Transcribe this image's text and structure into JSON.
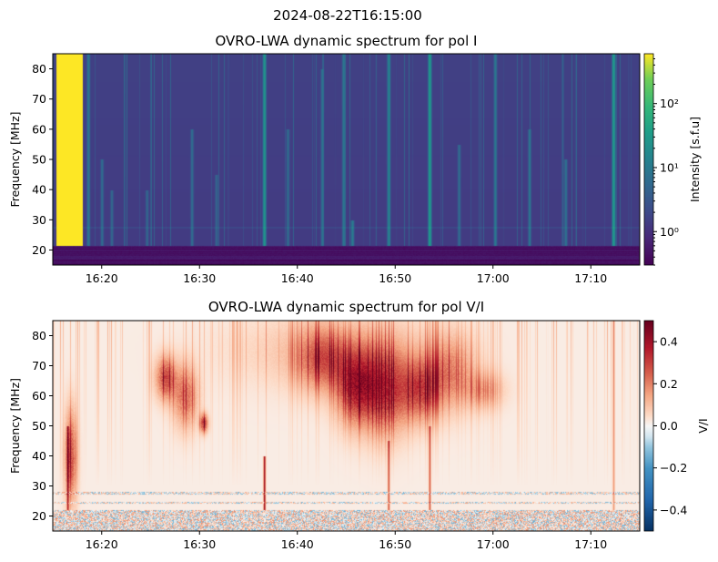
{
  "figure": {
    "suptitle": "2024-08-22T16:15:00"
  },
  "chart_data": [
    {
      "type": "heatmap",
      "title": "OVRO-LWA dynamic spectrum for pol I",
      "xlabel": "",
      "ylabel": "Frequency [MHz]",
      "xlim": [
        "16:15",
        "17:15"
      ],
      "ylim": [
        15,
        85
      ],
      "xticks": [
        {
          "v": 5,
          "label": "16:20"
        },
        {
          "v": 15,
          "label": "16:30"
        },
        {
          "v": 25,
          "label": "16:40"
        },
        {
          "v": 35,
          "label": "16:50"
        },
        {
          "v": 45,
          "label": "17:00"
        },
        {
          "v": 55,
          "label": "17:10"
        }
      ],
      "yticks": [
        20,
        30,
        40,
        50,
        60,
        70,
        80
      ],
      "colorbar": {
        "label": "Intensity [s.f.u]",
        "scale": "log",
        "range": [
          0.3,
          600
        ],
        "colormap": "viridis",
        "ticks": [
          {
            "v": 1,
            "label": "10⁰"
          },
          {
            "v": 10,
            "label": "10¹"
          },
          {
            "v": 100,
            "label": "10²"
          }
        ]
      },
      "background_level": 1.5,
      "low_freq_cutoff_mhz": 21.5,
      "bright_block": {
        "t_start_min": 0.3,
        "t_end_min": 3.0,
        "level": 600
      },
      "bursts": [
        {
          "t": 3.6,
          "fmin": 21,
          "fmax": 85,
          "level": 8
        },
        {
          "t": 5.0,
          "fmin": 21,
          "fmax": 50,
          "level": 5
        },
        {
          "t": 6.0,
          "fmin": 21,
          "fmax": 40,
          "level": 4
        },
        {
          "t": 9.6,
          "fmin": 21,
          "fmax": 40,
          "level": 4
        },
        {
          "t": 14.2,
          "fmin": 21,
          "fmax": 60,
          "level": 5
        },
        {
          "t": 16.7,
          "fmin": 21,
          "fmax": 45,
          "level": 4
        },
        {
          "t": 21.6,
          "fmin": 21,
          "fmax": 85,
          "level": 25
        },
        {
          "t": 24.0,
          "fmin": 21,
          "fmax": 60,
          "level": 5
        },
        {
          "t": 27.5,
          "fmin": 21,
          "fmax": 80,
          "level": 5
        },
        {
          "t": 29.7,
          "fmin": 21,
          "fmax": 85,
          "level": 8
        },
        {
          "t": 30.6,
          "fmin": 21,
          "fmax": 30,
          "level": 10
        },
        {
          "t": 34.3,
          "fmin": 21,
          "fmax": 85,
          "level": 12
        },
        {
          "t": 38.5,
          "fmin": 21,
          "fmax": 85,
          "level": 30
        },
        {
          "t": 41.5,
          "fmin": 21,
          "fmax": 55,
          "level": 5
        },
        {
          "t": 45.2,
          "fmin": 21,
          "fmax": 85,
          "level": 8
        },
        {
          "t": 48.7,
          "fmin": 21,
          "fmax": 60,
          "level": 6
        },
        {
          "t": 52.4,
          "fmin": 21,
          "fmax": 50,
          "level": 6
        },
        {
          "t": 57.3,
          "fmin": 21,
          "fmax": 85,
          "level": 30
        }
      ]
    },
    {
      "type": "heatmap",
      "title": "OVRO-LWA dynamic spectrum for pol V/I",
      "xlabel": "",
      "ylabel": "Frequency [MHz]",
      "xlim": [
        "16:15",
        "17:15"
      ],
      "ylim": [
        15,
        85
      ],
      "xticks": [
        {
          "v": 5,
          "label": "16:20"
        },
        {
          "v": 15,
          "label": "16:30"
        },
        {
          "v": 25,
          "label": "16:40"
        },
        {
          "v": 35,
          "label": "16:50"
        },
        {
          "v": 45,
          "label": "17:00"
        },
        {
          "v": 55,
          "label": "17:10"
        }
      ],
      "yticks": [
        20,
        30,
        40,
        50,
        60,
        70,
        80
      ],
      "colorbar": {
        "label": "V/I",
        "scale": "linear",
        "range": [
          -0.5,
          0.5
        ],
        "colormap": "RdBu_r",
        "ticks": [
          {
            "v": 0.4,
            "label": "0.4"
          },
          {
            "v": 0.2,
            "label": "0.2"
          },
          {
            "v": 0.0,
            "label": "0.0"
          },
          {
            "v": -0.2,
            "label": "−0.2"
          },
          {
            "v": -0.4,
            "label": "−0.4"
          }
        ]
      },
      "regions": [
        {
          "t": 1.8,
          "f": 40,
          "dt": 0.6,
          "df": 15,
          "value": 0.35
        },
        {
          "t": 11.5,
          "f": 66,
          "dt": 1.0,
          "df": 7,
          "value": 0.35
        },
        {
          "t": 13.5,
          "f": 60,
          "dt": 1.2,
          "df": 10,
          "value": 0.28
        },
        {
          "t": 15.4,
          "f": 51,
          "dt": 0.4,
          "df": 3,
          "value": 0.4
        },
        {
          "t": 27.5,
          "f": 72,
          "dt": 2.5,
          "df": 10,
          "value": 0.25
        },
        {
          "t": 31.0,
          "f": 63,
          "dt": 2.0,
          "df": 12,
          "value": 0.42
        },
        {
          "t": 34.0,
          "f": 62,
          "dt": 2.2,
          "df": 14,
          "value": 0.38
        },
        {
          "t": 37.5,
          "f": 62,
          "dt": 2.0,
          "df": 10,
          "value": 0.32
        },
        {
          "t": 40.5,
          "f": 68,
          "dt": 2.5,
          "df": 12,
          "value": 0.22
        },
        {
          "t": 44.0,
          "f": 62,
          "dt": 2.0,
          "df": 6,
          "value": 0.15
        },
        {
          "t": 29.0,
          "f": 75,
          "dt": 9.0,
          "df": 12,
          "value": 0.12
        }
      ],
      "stripes": [
        {
          "t": 1.5,
          "fmin": 22,
          "fmax": 50,
          "value": 0.3
        },
        {
          "t": 21.6,
          "fmin": 22,
          "fmax": 40,
          "value": 0.4
        },
        {
          "t": 34.3,
          "fmin": 22,
          "fmax": 45,
          "value": 0.25
        },
        {
          "t": 38.5,
          "fmin": 22,
          "fmax": 50,
          "value": 0.25
        },
        {
          "t": 57.3,
          "fmin": 22,
          "fmax": 85,
          "value": 0.15
        }
      ]
    }
  ]
}
